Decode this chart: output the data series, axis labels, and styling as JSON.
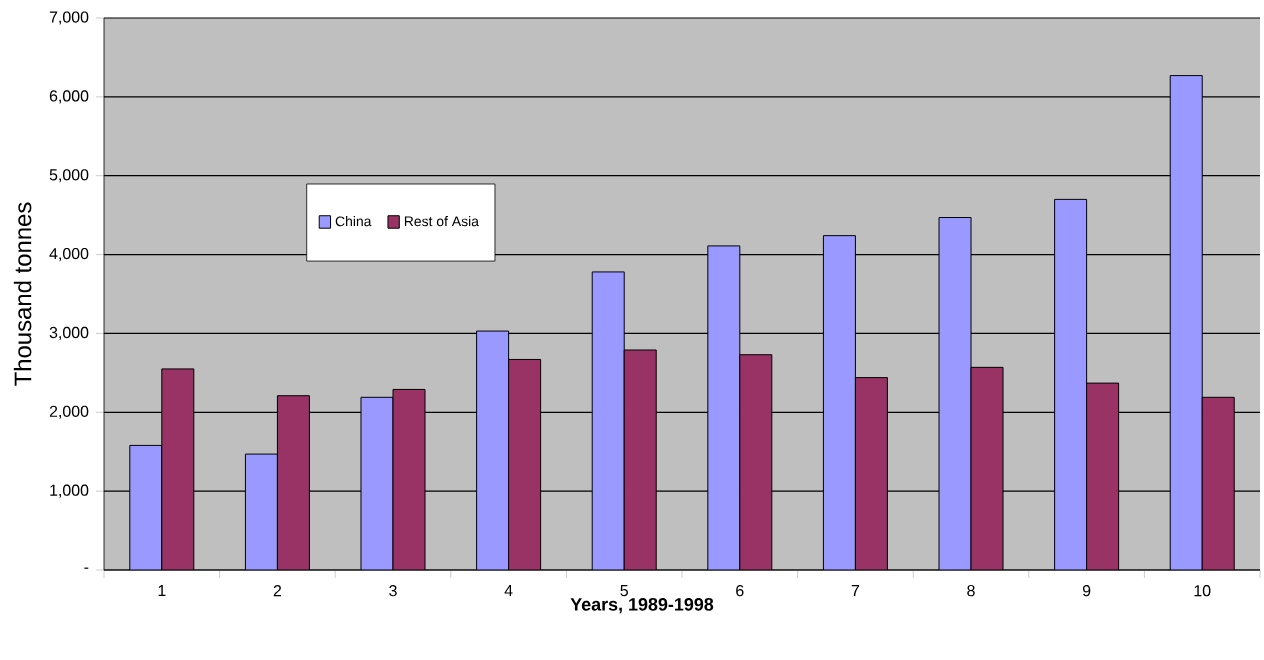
{
  "chart_data": {
    "type": "bar",
    "xlabel": "Years, 1989-1998",
    "ylabel": "Thousand tonnes",
    "categories": [
      "1",
      "2",
      "3",
      "4",
      "5",
      "6",
      "7",
      "8",
      "9",
      "10"
    ],
    "series": [
      {
        "name": "China",
        "color": "#9999ff",
        "values": [
          1580,
          1470,
          2190,
          3030,
          3780,
          4110,
          4240,
          4470,
          4700,
          6270
        ]
      },
      {
        "name": "Rest of Asia",
        "color": "#993366",
        "values": [
          2550,
          2210,
          2290,
          2670,
          2790,
          2730,
          2440,
          2570,
          2370,
          2190
        ]
      }
    ],
    "ylim": [
      0,
      7000
    ],
    "yticks": [
      {
        "value": 0,
        "label": "-"
      },
      {
        "value": 1000,
        "label": "1,000"
      },
      {
        "value": 2000,
        "label": "2,000"
      },
      {
        "value": 3000,
        "label": "3,000"
      },
      {
        "value": 4000,
        "label": "4,000"
      },
      {
        "value": 5000,
        "label": "5,000"
      },
      {
        "value": 6000,
        "label": "6,000"
      },
      {
        "value": 7000,
        "label": "7,000"
      }
    ],
    "grid": "y",
    "legend": "top left"
  }
}
